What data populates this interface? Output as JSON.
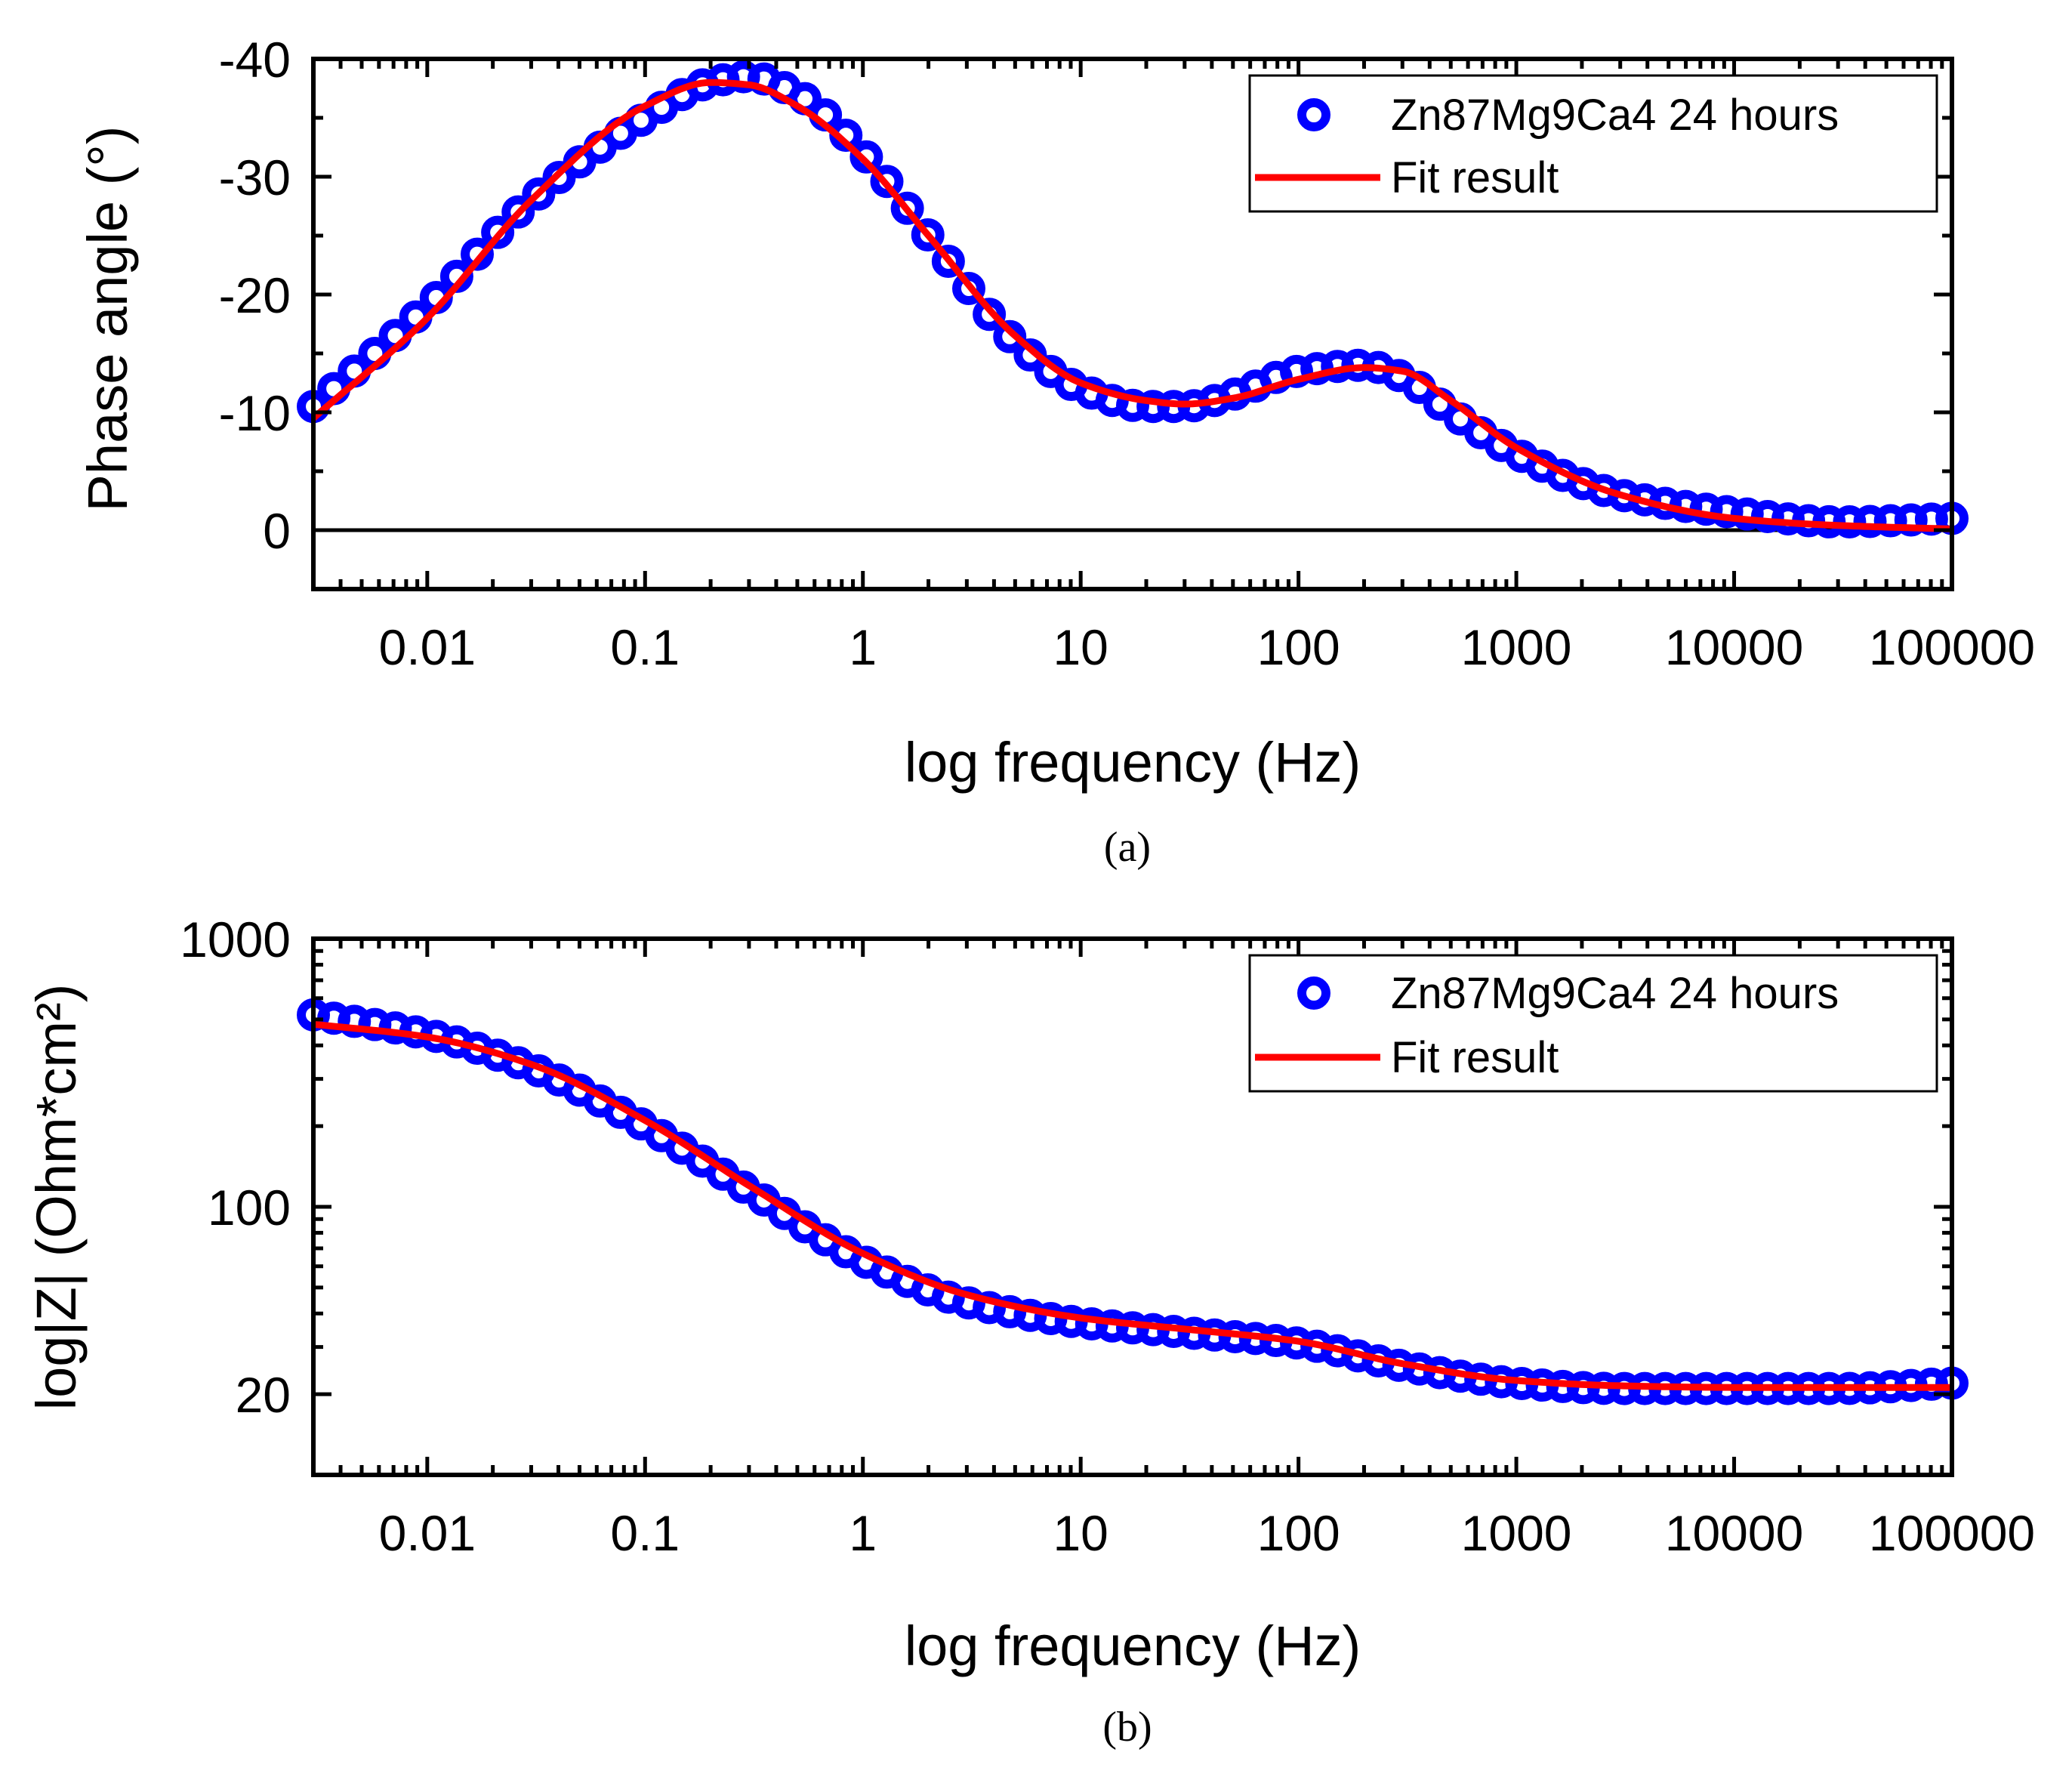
{
  "colors": {
    "data": "#0000ff",
    "fit": "#ff0000",
    "axis": "#000000"
  },
  "chart_data": [
    {
      "type": "scatter",
      "panel_label": "(a)",
      "xlabel": "log frequency (Hz)",
      "ylabel": "Phase angle (°)",
      "xscale": "log",
      "xlim": [
        0.003,
        100000
      ],
      "ylim": [
        5,
        -40
      ],
      "x_ticks": [
        0.01,
        0.1,
        1,
        10,
        100,
        1000,
        10000,
        100000
      ],
      "x_tick_labels": [
        "0.01",
        "0.1",
        "1",
        "10",
        "100",
        "1000",
        "10000",
        "100000"
      ],
      "y_ticks": [
        -40,
        -30,
        -20,
        -10,
        0
      ],
      "y_tick_labels": [
        "-40",
        "-30",
        "-20",
        "-10",
        "0"
      ],
      "legend": {
        "position": "top-right",
        "entries": [
          "Zn87Mg9Ca4 24 hours",
          "Fit result"
        ]
      },
      "series": [
        {
          "name": "Zn87Mg9Ca4 24 hours",
          "style": "open-circle",
          "x": [
            0.003,
            0.01,
            0.03,
            0.1,
            0.2,
            0.3,
            0.5,
            1,
            2,
            5,
            10,
            20,
            30,
            50,
            100,
            200,
            300,
            500,
            1000,
            3000,
            10000,
            30000,
            100000
          ],
          "y": [
            -10.5,
            -19,
            -28,
            -35,
            -38,
            -38.5,
            -37,
            -32,
            -25,
            -16,
            -12,
            -10.5,
            -10.5,
            -11.5,
            -13.5,
            -14,
            -13,
            -10,
            -6.5,
            -3,
            -1.5,
            -0.7,
            -1
          ]
        },
        {
          "name": "Fit result",
          "style": "line",
          "x": [
            0.003,
            0.01,
            0.03,
            0.1,
            0.2,
            0.3,
            0.5,
            1,
            2,
            5,
            10,
            20,
            30,
            50,
            100,
            200,
            300,
            500,
            1000,
            3000,
            10000,
            30000,
            100000
          ],
          "y": [
            -9.5,
            -18,
            -28,
            -36,
            -38,
            -37.8,
            -36,
            -31.5,
            -25,
            -16.5,
            -12.5,
            -11,
            -10.7,
            -11.2,
            -12.8,
            -13.8,
            -13.5,
            -11,
            -7,
            -3,
            -1,
            -0.4,
            -0.1
          ]
        }
      ]
    },
    {
      "type": "scatter",
      "panel_label": "(b)",
      "xlabel": "log frequency (Hz)",
      "ylabel": "log|Z| (Ohm*cm²)",
      "xscale": "log",
      "yscale": "log",
      "xlim": [
        0.003,
        100000
      ],
      "ylim": [
        10,
        1000
      ],
      "x_ticks": [
        0.01,
        0.1,
        1,
        10,
        100,
        1000,
        10000,
        100000
      ],
      "x_tick_labels": [
        "0.01",
        "0.1",
        "1",
        "10",
        "100",
        "1000",
        "10000",
        "100000"
      ],
      "y_ticks": [
        20,
        100,
        1000
      ],
      "y_tick_labels": [
        "20",
        "100",
        "1000"
      ],
      "legend": {
        "position": "top-right",
        "entries": [
          "Zn87Mg9Ca4 24 hours",
          "Fit result"
        ]
      },
      "series": [
        {
          "name": "Zn87Mg9Ca4 24 hours",
          "style": "open-circle",
          "x": [
            0.003,
            0.01,
            0.03,
            0.1,
            0.3,
            1,
            3,
            10,
            30,
            100,
            300,
            1000,
            3000,
            10000,
            30000,
            100000
          ],
          "y": [
            520,
            440,
            330,
            200,
            115,
            63,
            44,
            37,
            34,
            31,
            25.5,
            22,
            21,
            21,
            21,
            22
          ]
        },
        {
          "name": "Fit result",
          "style": "line",
          "x": [
            0.003,
            0.01,
            0.03,
            0.1,
            0.3,
            1,
            3,
            10,
            30,
            100,
            300,
            1000,
            3000,
            10000,
            30000,
            100000
          ],
          "y": [
            480,
            430,
            340,
            210,
            120,
            67,
            47,
            38.5,
            35,
            31.5,
            26,
            22.5,
            21.5,
            21.2,
            21.2,
            21.2
          ]
        }
      ]
    }
  ]
}
